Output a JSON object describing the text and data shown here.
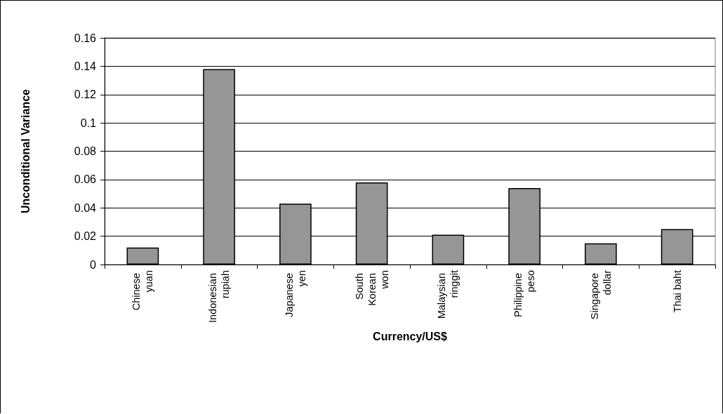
{
  "chart_data": {
    "type": "bar",
    "xlabel": "Currency/US$",
    "ylabel": "Unconditional Variance",
    "categories": [
      "Chinese yuan",
      "Indonesian rupiah",
      "Japanese yen",
      "South Korean won",
      "Malaysian ringgit",
      "Philippine peso",
      "Singapore dollar",
      "Thai baht"
    ],
    "values": [
      0.012,
      0.138,
      0.043,
      0.058,
      0.021,
      0.054,
      0.015,
      0.025
    ],
    "color": "#969696",
    "ylim": [
      0,
      0.16
    ],
    "yticks": [
      0,
      0.02,
      0.04,
      0.06,
      0.08,
      0.1,
      0.12,
      0.14,
      0.16
    ],
    "grid": "y"
  }
}
